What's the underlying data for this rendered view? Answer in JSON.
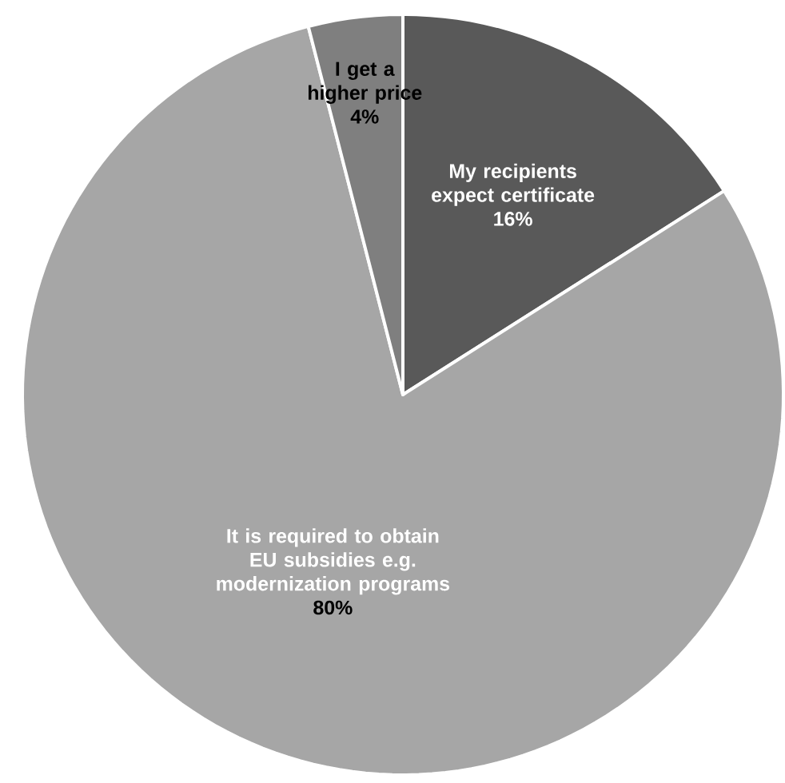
{
  "chart_data": {
    "type": "pie",
    "categories": [
      "My recipients expect certificate",
      "It is required to obtain EU subsidies e.g. modernization programs",
      "I get a higher price"
    ],
    "values": [
      16,
      80,
      4
    ],
    "value_labels": [
      "16%",
      "80%",
      "4%"
    ],
    "colors": [
      "#595959",
      "#a6a6a6",
      "#7f7f7f"
    ]
  }
}
